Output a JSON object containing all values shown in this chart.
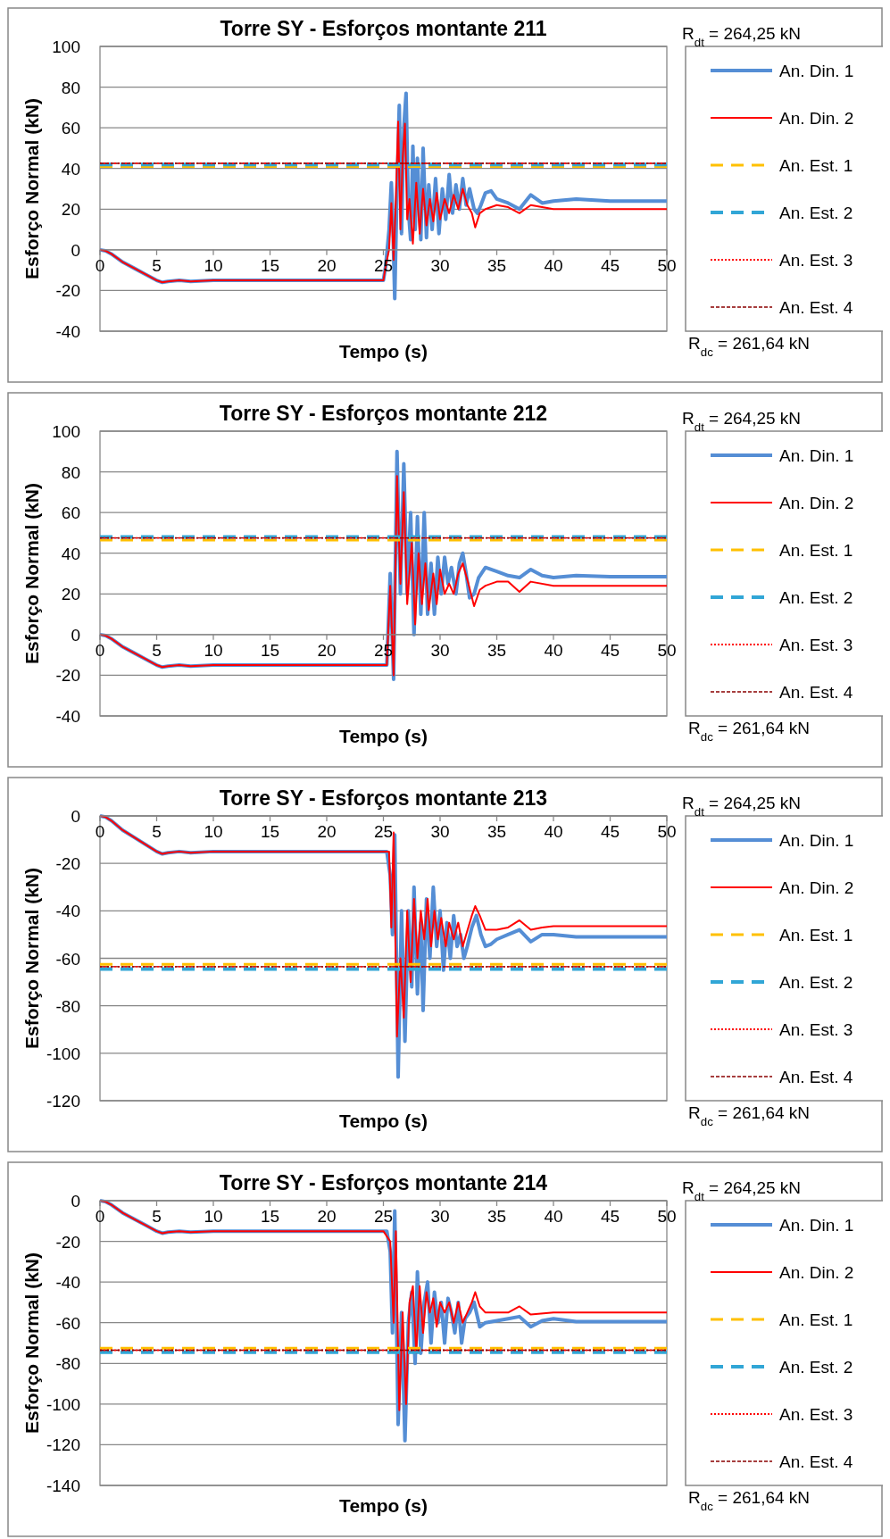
{
  "chart_data": [
    {
      "type": "line",
      "title": "Torre SY - Esforços montante 211",
      "xlabel": "Tempo (s)",
      "ylabel": "Esforço Normal (kN)",
      "annotations": [
        "R$_{dt}$ = 264,25 kN",
        "R$_{dc}$ = 261,64 kN"
      ],
      "xlim": [
        0,
        50
      ],
      "xticks": [
        0,
        5,
        10,
        15,
        20,
        25,
        30,
        35,
        40,
        45,
        50
      ],
      "ylim": [
        -40,
        100
      ],
      "yticks": [
        -40,
        -20,
        0,
        20,
        40,
        60,
        80,
        100
      ],
      "grid": "y",
      "legend": "right",
      "series": [
        {
          "name": "An. Din. 1",
          "color": "#558ed5",
          "line_style": "solid",
          "x": [
            0,
            0.5,
            1,
            2,
            3,
            4,
            5,
            5.5,
            6,
            7,
            8,
            10,
            15,
            20,
            25,
            25.2,
            25.5,
            25.7,
            25.8,
            26,
            26.2,
            26.4,
            26.6,
            26.8,
            27,
            27.2,
            27.4,
            27.6,
            27.8,
            28,
            28.3,
            28.5,
            28.8,
            29,
            29.3,
            29.6,
            29.9,
            30.2,
            30.5,
            30.8,
            31.1,
            31.4,
            31.7,
            32,
            32.3,
            32.6,
            33,
            33.3,
            33.6,
            34,
            34.5,
            35,
            36,
            37,
            38,
            39,
            40,
            42,
            45,
            50
          ],
          "values": [
            0,
            -0.5,
            -2,
            -6,
            -9,
            -12,
            -15,
            -16,
            -15.5,
            -15,
            -15.5,
            -15,
            -15,
            -15,
            -15,
            -8,
            10,
            33,
            20,
            -24,
            30,
            71,
            8,
            60,
            77,
            20,
            5,
            51,
            10,
            45,
            5,
            50,
            6,
            32,
            10,
            35,
            8,
            30,
            15,
            37,
            18,
            32,
            20,
            35,
            22,
            30,
            20,
            18,
            22,
            28,
            29,
            25,
            23,
            20,
            27,
            23,
            24,
            25,
            24,
            24
          ]
        },
        {
          "name": "An. Din. 2",
          "color": "#ff0000",
          "line_style": "solid",
          "x": [
            0,
            0.5,
            1,
            2,
            3,
            4,
            5,
            5.5,
            6,
            7,
            8,
            10,
            15,
            20,
            25,
            25.2,
            25.5,
            25.7,
            25.9,
            26.1,
            26.3,
            26.5,
            26.7,
            26.9,
            27.1,
            27.3,
            27.6,
            27.9,
            28.2,
            28.5,
            28.8,
            29.1,
            29.4,
            29.7,
            30,
            30.4,
            30.8,
            31.2,
            31.6,
            32,
            32.4,
            32.8,
            33.1,
            33.5,
            34,
            35,
            36,
            37,
            38,
            39,
            40,
            45,
            50
          ],
          "values": [
            0,
            -0.5,
            -2,
            -6,
            -9,
            -12,
            -15,
            -16,
            -15.5,
            -15,
            -15.5,
            -15,
            -15,
            -15,
            -15,
            -8,
            0,
            23,
            -5,
            25,
            63,
            10,
            45,
            62,
            15,
            25,
            3,
            33,
            8,
            30,
            12,
            25,
            14,
            28,
            15,
            25,
            18,
            27,
            20,
            30,
            22,
            18,
            11,
            18,
            20,
            22,
            21,
            18,
            22,
            21,
            20,
            20,
            20
          ]
        },
        {
          "name": "An. Est. 1",
          "color": "#ffc000",
          "line_style": "dashed",
          "x": [
            0,
            50
          ],
          "values": [
            41,
            41
          ]
        },
        {
          "name": "An. Est. 2",
          "color": "#31a6d6",
          "line_style": "dashed",
          "x": [
            0,
            50
          ],
          "values": [
            42,
            42
          ]
        },
        {
          "name": "An. Est. 3",
          "color": "#ff0000",
          "line_style": "dotted",
          "x": [
            0,
            50
          ],
          "values": [
            42.5,
            42.5
          ]
        },
        {
          "name": "An. Est. 4",
          "color": "#8b0000",
          "line_style": "dashed",
          "x": [
            0,
            50
          ],
          "values": [
            42.5,
            42.5
          ]
        }
      ]
    },
    {
      "type": "line",
      "title": "Torre SY - Esforços montante 212",
      "xlabel": "Tempo (s)",
      "ylabel": "Esforço Normal (kN)",
      "annotations": [
        "R$_{dt}$ = 264,25 kN",
        "R$_{dc}$ = 261,64 kN"
      ],
      "xlim": [
        0,
        50
      ],
      "xticks": [
        0,
        5,
        10,
        15,
        20,
        25,
        30,
        35,
        40,
        45,
        50
      ],
      "ylim": [
        -40,
        100
      ],
      "yticks": [
        -40,
        -20,
        0,
        20,
        40,
        60,
        80,
        100
      ],
      "grid": "y",
      "legend": "right",
      "series": [
        {
          "name": "An. Din. 1",
          "color": "#558ed5",
          "line_style": "solid",
          "x": [
            0,
            0.5,
            1,
            2,
            3,
            4,
            5,
            5.5,
            6,
            7,
            8,
            10,
            15,
            20,
            25,
            25.3,
            25.6,
            25.9,
            26.2,
            26.5,
            26.8,
            27.1,
            27.4,
            27.7,
            28,
            28.3,
            28.6,
            28.9,
            29.2,
            29.5,
            29.8,
            30.1,
            30.4,
            30.7,
            31,
            31.4,
            31.7,
            32,
            32.3,
            32.6,
            33,
            33.4,
            34,
            35,
            36,
            37,
            38,
            39,
            40,
            42,
            45,
            50
          ],
          "values": [
            0,
            -0.5,
            -2,
            -6,
            -9,
            -12,
            -15,
            -16,
            -15.5,
            -15,
            -15.5,
            -15,
            -15,
            -15,
            -15,
            -15,
            30,
            -22,
            90,
            20,
            84,
            20,
            60,
            0,
            58,
            10,
            60,
            10,
            35,
            10,
            38,
            20,
            38,
            25,
            33,
            20,
            35,
            40,
            30,
            18,
            20,
            28,
            33,
            31,
            29,
            28,
            32,
            29,
            28,
            29,
            28.5,
            28.5
          ]
        },
        {
          "name": "An. Din. 2",
          "color": "#ff0000",
          "line_style": "solid",
          "x": [
            0,
            0.5,
            1,
            2,
            3,
            4,
            5,
            5.5,
            6,
            7,
            8,
            10,
            15,
            20,
            25,
            25.3,
            25.6,
            25.9,
            26.2,
            26.5,
            26.8,
            27.1,
            27.5,
            27.8,
            28.1,
            28.4,
            28.7,
            29,
            29.4,
            29.7,
            30,
            30.4,
            30.8,
            31.2,
            31.6,
            32,
            32.5,
            33,
            33.5,
            34,
            35,
            36,
            37,
            38,
            40,
            45,
            50
          ],
          "values": [
            0,
            -0.5,
            -2,
            -6,
            -9,
            -12,
            -15,
            -16,
            -15.5,
            -15,
            -15.5,
            -15,
            -15,
            -15,
            -15,
            -15,
            24,
            -20,
            78,
            25,
            70,
            15,
            45,
            5,
            40,
            15,
            35,
            12,
            30,
            15,
            32,
            20,
            25,
            20,
            30,
            35,
            25,
            14,
            22,
            24,
            26,
            26,
            21,
            26,
            24,
            24,
            24
          ]
        },
        {
          "name": "An. Est. 1",
          "color": "#ffc000",
          "line_style": "dashed",
          "x": [
            0,
            50
          ],
          "values": [
            46.5,
            46.5
          ]
        },
        {
          "name": "An. Est. 2",
          "color": "#31a6d6",
          "line_style": "dashed",
          "x": [
            0,
            50
          ],
          "values": [
            48,
            48
          ]
        },
        {
          "name": "An. Est. 3",
          "color": "#ff0000",
          "line_style": "dotted",
          "x": [
            0,
            50
          ],
          "values": [
            47.5,
            47.5
          ]
        },
        {
          "name": "An. Est. 4",
          "color": "#8b0000",
          "line_style": "dashed",
          "x": [
            0,
            50
          ],
          "values": [
            47.5,
            47.5
          ]
        }
      ]
    },
    {
      "type": "line",
      "title": "Torre SY - Esforços montante 213",
      "xlabel": "Tempo (s)",
      "ylabel": "Esforço Normal (kN)",
      "annotations": [
        "R$_{dt}$ = 264,25 kN",
        "R$_{dc}$ = 261,64 kN"
      ],
      "xlim": [
        0,
        50
      ],
      "xticks": [
        0,
        5,
        10,
        15,
        20,
        25,
        30,
        35,
        40,
        45,
        50
      ],
      "ylim": [
        -120,
        0
      ],
      "yticks": [
        -120,
        -100,
        -80,
        -60,
        -40,
        -20,
        0
      ],
      "grid": "y",
      "legend": "right",
      "series": [
        {
          "name": "An. Din. 1",
          "color": "#558ed5",
          "line_style": "solid",
          "x": [
            0,
            0.5,
            1,
            2,
            3,
            4,
            5,
            5.5,
            6,
            7,
            8,
            10,
            15,
            20,
            25,
            25.3,
            25.6,
            25.8,
            26,
            26.3,
            26.6,
            26.9,
            27.2,
            27.5,
            27.7,
            28,
            28.3,
            28.5,
            28.8,
            29.1,
            29.4,
            29.7,
            30,
            30.3,
            30.6,
            30.9,
            31.2,
            31.5,
            31.8,
            32.1,
            32.4,
            32.8,
            33.2,
            33.6,
            34,
            34.5,
            35,
            36,
            37,
            38,
            39,
            40,
            42,
            45,
            50
          ],
          "values": [
            0,
            -0.5,
            -2,
            -6,
            -9,
            -12,
            -15,
            -16,
            -15.5,
            -15,
            -15.5,
            -15,
            -15,
            -15,
            -15,
            -15,
            -25,
            -50,
            -8,
            -110,
            -40,
            -95,
            -40,
            -72,
            -30,
            -75,
            -45,
            -82,
            -35,
            -60,
            -30,
            -55,
            -40,
            -65,
            -45,
            -60,
            -42,
            -55,
            -50,
            -60,
            -55,
            -47,
            -42,
            -50,
            -55,
            -54,
            -52,
            -50,
            -48,
            -53,
            -50,
            -50,
            -51,
            -51,
            -51
          ]
        },
        {
          "name": "An. Din. 2",
          "color": "#ff0000",
          "line_style": "solid",
          "x": [
            0,
            0.5,
            1,
            2,
            3,
            4,
            5,
            5.5,
            6,
            7,
            8,
            10,
            15,
            20,
            25,
            25.5,
            25.7,
            25.9,
            26.2,
            26.5,
            26.8,
            27.1,
            27.4,
            27.7,
            28,
            28.3,
            28.6,
            28.9,
            29.2,
            29.5,
            29.8,
            30.1,
            30.5,
            30.8,
            31.2,
            31.6,
            32,
            32.3,
            32.8,
            33.1,
            33.5,
            34,
            35,
            36,
            37,
            38,
            39,
            40,
            45,
            50
          ],
          "values": [
            0,
            -0.5,
            -2,
            -6,
            -9,
            -12,
            -15,
            -16,
            -15.5,
            -15,
            -15.5,
            -15,
            -15,
            -15,
            -15,
            -15,
            -47,
            -7,
            -93,
            -60,
            -85,
            -40,
            -70,
            -35,
            -60,
            -40,
            -52,
            -35,
            -55,
            -40,
            -52,
            -43,
            -55,
            -45,
            -52,
            -45,
            -55,
            -50,
            -42,
            -38,
            -42,
            -48,
            -48,
            -47,
            -44,
            -48,
            -47,
            -46.5,
            -46.5,
            -46.5
          ]
        },
        {
          "name": "An. Est. 1",
          "color": "#ffc000",
          "line_style": "dashed",
          "x": [
            0,
            50
          ],
          "values": [
            -62.5,
            -62.5
          ]
        },
        {
          "name": "An. Est. 2",
          "color": "#31a6d6",
          "line_style": "dashed",
          "x": [
            0,
            50
          ],
          "values": [
            -64.5,
            -64.5
          ]
        },
        {
          "name": "An. Est. 3",
          "color": "#ff0000",
          "line_style": "dotted",
          "x": [
            0,
            50
          ],
          "values": [
            -63.5,
            -63.5
          ]
        },
        {
          "name": "An. Est. 4",
          "color": "#8b0000",
          "line_style": "dashed",
          "x": [
            0,
            50
          ],
          "values": [
            -63.5,
            -63.5
          ]
        }
      ]
    },
    {
      "type": "line",
      "title": "Torre SY - Esforços montante 214",
      "xlabel": "Tempo (s)",
      "ylabel": "Esforço Normal (kN)",
      "annotations": [
        "R$_{dt}$ = 264,25 kN",
        "R$_{dc}$ = 261,64 kN"
      ],
      "xlim": [
        0,
        50
      ],
      "xticks": [
        0,
        5,
        10,
        15,
        20,
        25,
        30,
        35,
        40,
        45,
        50
      ],
      "ylim": [
        -140,
        0
      ],
      "yticks": [
        -140,
        -120,
        -100,
        -80,
        -60,
        -40,
        -20,
        0
      ],
      "grid": "y",
      "legend": "right",
      "series": [
        {
          "name": "An. Din. 1",
          "color": "#558ed5",
          "line_style": "solid",
          "x": [
            0,
            0.5,
            1,
            2,
            3,
            4,
            5,
            5.5,
            6,
            7,
            8,
            10,
            15,
            20,
            25,
            25.3,
            25.6,
            25.8,
            26,
            26.3,
            26.6,
            26.9,
            27.2,
            27.5,
            27.8,
            28,
            28.3,
            28.6,
            28.9,
            29.2,
            29.5,
            29.8,
            30.1,
            30.4,
            30.7,
            31,
            31.3,
            31.6,
            31.9,
            32.2,
            32.6,
            33,
            33.5,
            34,
            35,
            36,
            37,
            38,
            39,
            40,
            42,
            45,
            50
          ],
          "values": [
            0,
            -0.5,
            -2,
            -6,
            -9,
            -12,
            -15,
            -16,
            -15.5,
            -15,
            -15.5,
            -15,
            -15,
            -15,
            -15,
            -15,
            -25,
            -65,
            -5,
            -110,
            -55,
            -118,
            -60,
            -45,
            -80,
            -35,
            -75,
            -50,
            -40,
            -70,
            -45,
            -60,
            -50,
            -70,
            -48,
            -55,
            -65,
            -50,
            -70,
            -58,
            -55,
            -50,
            -62,
            -60,
            -59,
            -58,
            -57,
            -62,
            -59,
            -58,
            -59.5,
            -59.5,
            -59.5
          ]
        },
        {
          "name": "An. Din. 2",
          "color": "#ff0000",
          "line_style": "solid",
          "x": [
            0,
            0.5,
            1,
            2,
            3,
            4,
            5,
            5.5,
            6,
            7,
            8,
            10,
            15,
            20,
            25,
            25.6,
            25.9,
            26.1,
            26.4,
            26.7,
            27,
            27.3,
            27.6,
            27.9,
            28.2,
            28.5,
            28.8,
            29.1,
            29.4,
            29.7,
            30,
            30.4,
            30.8,
            31.2,
            31.6,
            32,
            32.4,
            32.8,
            33.1,
            33.5,
            34,
            35,
            36,
            37,
            38,
            40,
            45,
            50
          ],
          "values": [
            0,
            -0.5,
            -2,
            -6,
            -9,
            -12,
            -15,
            -16,
            -15.5,
            -15,
            -15.5,
            -15,
            -15,
            -15,
            -15,
            -20,
            -60,
            -15,
            -103,
            -55,
            -100,
            -50,
            -42,
            -75,
            -42,
            -65,
            -45,
            -55,
            -48,
            -62,
            -50,
            -55,
            -50,
            -60,
            -50,
            -60,
            -55,
            -50,
            -45,
            -52,
            -55,
            -55,
            -55,
            -52,
            -56,
            -55,
            -55,
            -55
          ]
        },
        {
          "name": "An. Est. 1",
          "color": "#ffc000",
          "line_style": "dashed",
          "x": [
            0,
            50
          ],
          "values": [
            -72.5,
            -72.5
          ]
        },
        {
          "name": "An. Est. 2",
          "color": "#31a6d6",
          "line_style": "dashed",
          "x": [
            0,
            50
          ],
          "values": [
            -74.5,
            -74.5
          ]
        },
        {
          "name": "An. Est. 3",
          "color": "#ff0000",
          "line_style": "dotted",
          "x": [
            0,
            50
          ],
          "values": [
            -73.5,
            -73.5
          ]
        },
        {
          "name": "An. Est. 4",
          "color": "#8b0000",
          "line_style": "dashed",
          "x": [
            0,
            50
          ],
          "values": [
            -73.5,
            -73.5
          ]
        }
      ]
    }
  ]
}
